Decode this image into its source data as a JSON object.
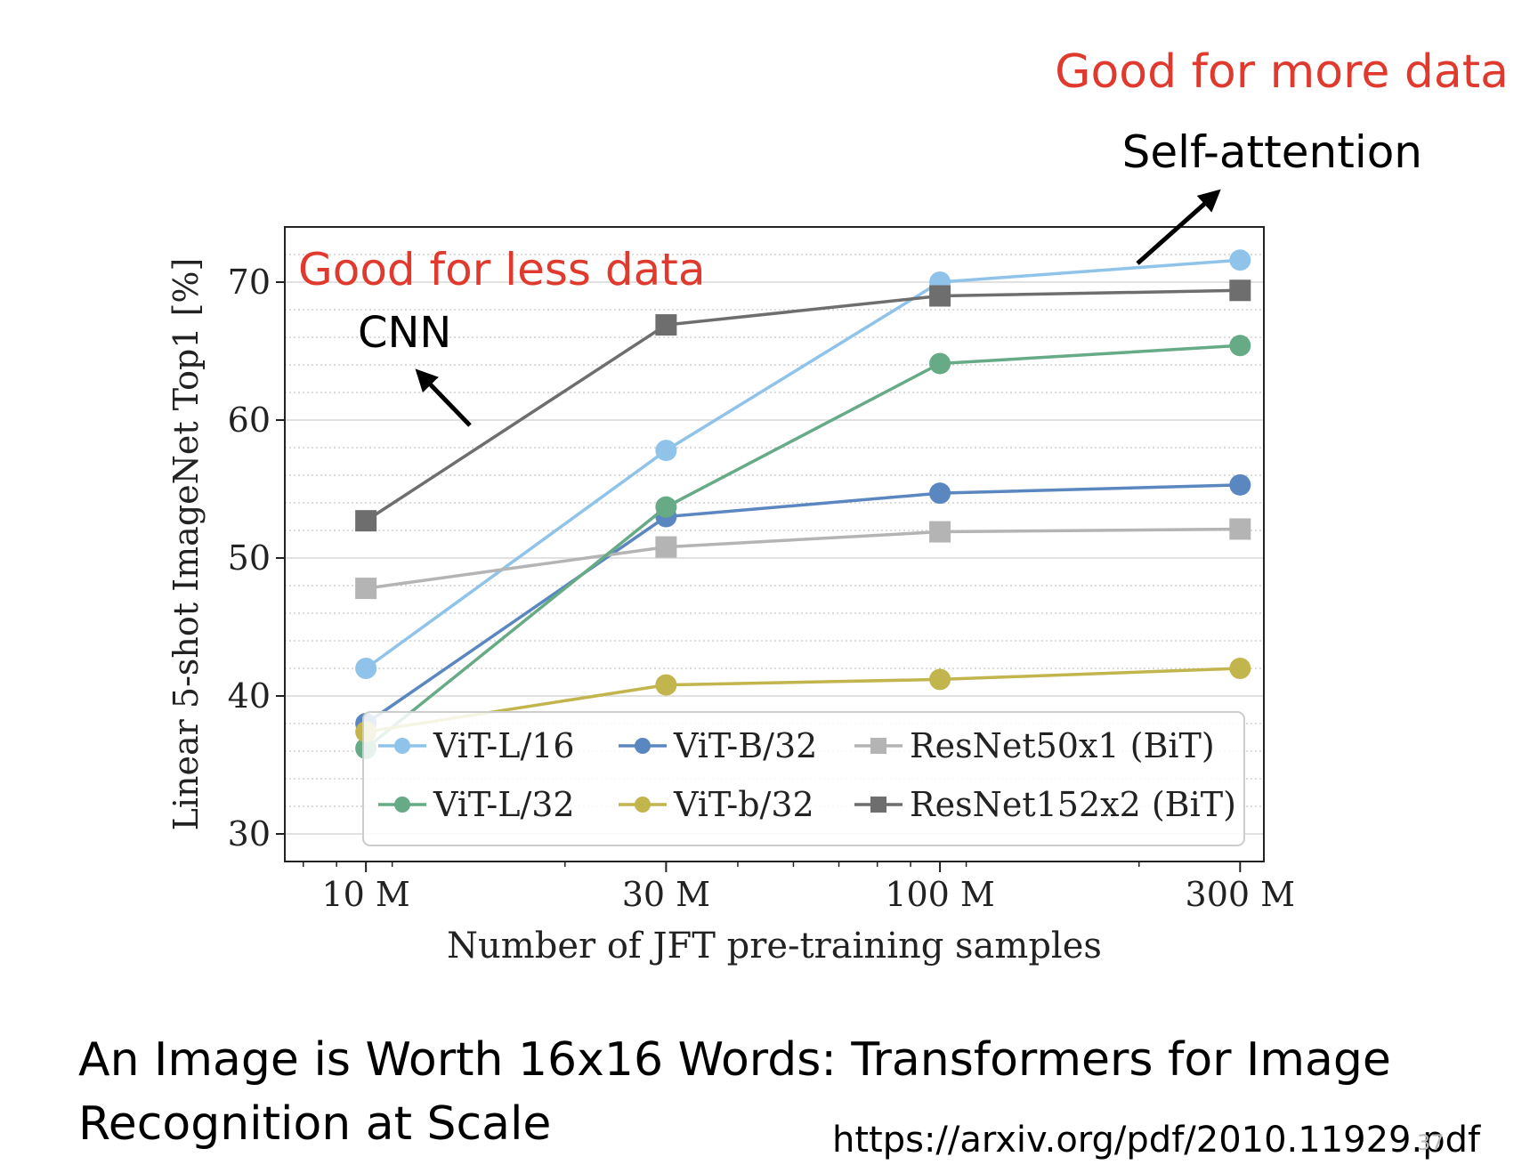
{
  "chart_data": {
    "type": "line",
    "title": "",
    "xlabel": "Number of JFT pre-training samples",
    "ylabel": "Linear 5-shot ImageNet Top1 [%]",
    "x_scale": "log",
    "x": [
      "10 M",
      "30 M",
      "100 M",
      "300 M"
    ],
    "x_values": [
      9000000,
      30000000,
      90000000,
      300000000
    ],
    "xlim": [
      6500000,
      330000000
    ],
    "ylim": [
      28,
      74
    ],
    "x_ticks": [
      "10 M",
      "30 M",
      "100 M",
      "300 M"
    ],
    "y_ticks": [
      30,
      40,
      50,
      60,
      70
    ],
    "grid": true,
    "legend_position": "bottom-right",
    "series": [
      {
        "name": "ViT-L/16",
        "color": "#8fc3ea",
        "marker": "circle",
        "values": [
          42.0,
          57.8,
          70.0,
          71.6
        ]
      },
      {
        "name": "ViT-B/32",
        "color": "#5b87c0",
        "marker": "circle",
        "values": [
          38.0,
          53.0,
          54.7,
          55.3
        ]
      },
      {
        "name": "ResNet50x1 (BiT)",
        "color": "#b4b4b4",
        "marker": "square",
        "values": [
          47.8,
          50.8,
          51.9,
          52.1
        ]
      },
      {
        "name": "ViT-L/32",
        "color": "#66aa86",
        "marker": "circle",
        "values": [
          36.2,
          53.7,
          64.1,
          65.4
        ]
      },
      {
        "name": "ViT-b/32",
        "color": "#c2b54e",
        "marker": "circle",
        "values": [
          37.4,
          40.8,
          41.2,
          42.0
        ]
      },
      {
        "name": "ResNet152x2 (BiT)",
        "color": "#6e6e6e",
        "marker": "square",
        "values": [
          52.7,
          66.9,
          69.0,
          69.4
        ]
      }
    ],
    "annotations": {
      "more_data": "Good for more data",
      "self_attention": "Self-attention",
      "less_data": "Good for less data",
      "cnn": "CNN"
    }
  },
  "colors": {
    "annotation_red": "#e03a2e",
    "arrow": "#000000"
  },
  "footer": {
    "paper_title": "An Image is Worth 16x16 Words: Transformers for Image Recognition at Scale",
    "url": "https://arxiv.org/pdf/2010.11929.pdf",
    "page_number": "37"
  }
}
